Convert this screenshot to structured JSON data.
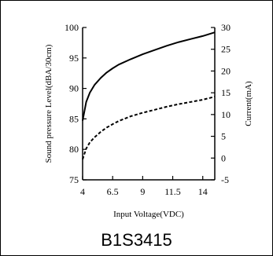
{
  "chart_data": {
    "type": "line",
    "xlabel": "Input Voltage(VDC)",
    "ylabel": "Sound pressure Level(dBA/30cm)",
    "y2label": "Current(mA)",
    "xlim": [
      4,
      15
    ],
    "ylim": [
      75,
      100
    ],
    "y2lim": [
      -5,
      30
    ],
    "x_ticks": [
      "4",
      "6.5",
      "9",
      "11.5",
      "14"
    ],
    "x_tick_values": [
      4,
      6.5,
      9,
      11.5,
      14
    ],
    "y_ticks": [
      "75",
      "80",
      "85",
      "90",
      "95",
      "100"
    ],
    "y_tick_values": [
      75,
      80,
      85,
      90,
      95,
      100
    ],
    "y2_ticks": [
      "-5",
      "0",
      "5",
      "10",
      "15",
      "20",
      "25",
      "30"
    ],
    "y2_tick_values": [
      -5,
      0,
      5,
      10,
      15,
      20,
      25,
      30
    ],
    "grid": false,
    "legend": "none",
    "series": [
      {
        "axis": "left",
        "style": "solid",
        "x": [
          4,
          4.3,
          4.6,
          5,
          5.5,
          6,
          6.5,
          7,
          8,
          9,
          10,
          11,
          12,
          13,
          14,
          15
        ],
        "y": [
          84.7,
          87.8,
          89.3,
          90.6,
          91.7,
          92.6,
          93.3,
          93.9,
          94.8,
          95.6,
          96.3,
          97.0,
          97.6,
          98.1,
          98.6,
          99.2
        ]
      },
      {
        "axis": "right",
        "style": "dashed",
        "x": [
          4,
          4.3,
          4.6,
          5,
          5.5,
          6,
          6.5,
          7,
          8,
          9,
          10,
          11,
          12,
          13,
          14,
          15
        ],
        "y": [
          -0.3,
          2.2,
          3.6,
          4.8,
          6.0,
          7.0,
          7.8,
          8.5,
          9.6,
          10.4,
          11.1,
          11.8,
          12.4,
          12.9,
          13.4,
          14.1
        ]
      }
    ]
  },
  "caption": "B1S3415"
}
